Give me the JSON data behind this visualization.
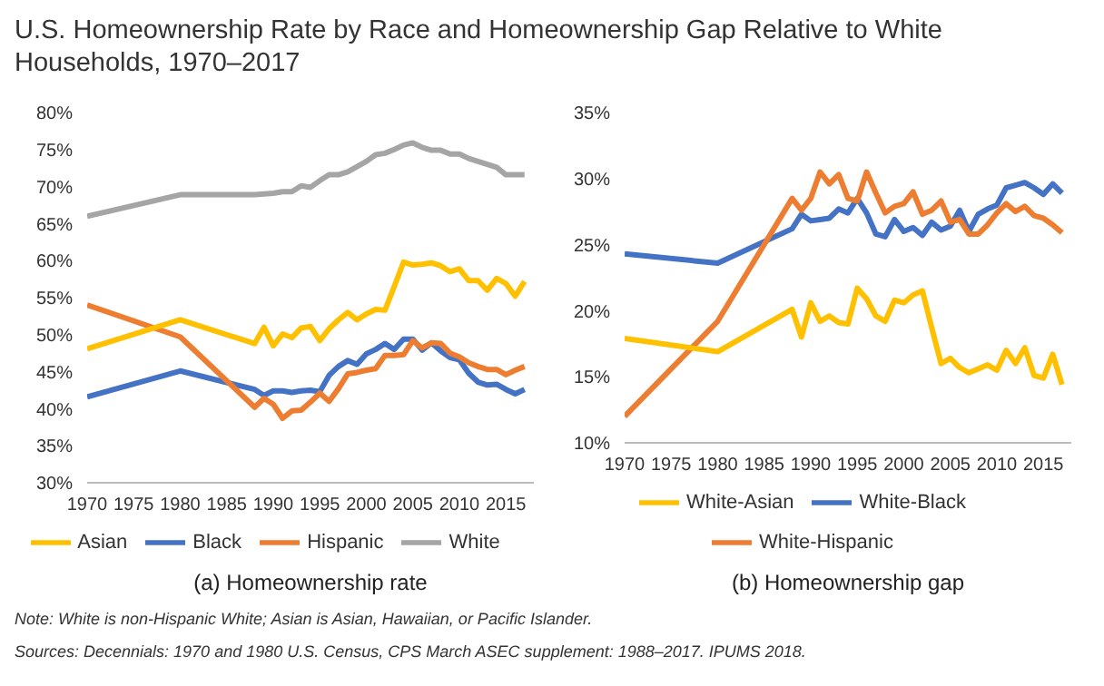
{
  "chart_data": [
    {
      "type": "line",
      "title": "U.S. Homeownership Rate by Race and Homeownership Gap Relative to White Households, 1970–2017",
      "xlabel": "(a) Homeownership rate",
      "x": [
        1970,
        1980,
        1988,
        1989,
        1990,
        1991,
        1992,
        1993,
        1994,
        1995,
        1996,
        1997,
        1998,
        1999,
        2000,
        2001,
        2002,
        2003,
        2004,
        2005,
        2006,
        2007,
        2008,
        2009,
        2010,
        2011,
        2012,
        2013,
        2014,
        2015,
        2016,
        2017
      ],
      "series": [
        {
          "name": "Black",
          "color": "#4472c4",
          "values": [
            41.6,
            45.1,
            42.6,
            41.8,
            42.4,
            42.4,
            42.2,
            42.4,
            42.5,
            42.3,
            44.5,
            45.7,
            46.5,
            46.0,
            47.4,
            48.0,
            48.8,
            48.0,
            49.4,
            49.4,
            47.9,
            48.9,
            47.8,
            46.9,
            46.6,
            44.8,
            43.6,
            43.2,
            43.3,
            42.6,
            42.0,
            42.6
          ]
        },
        {
          "name": "Hispanic",
          "color": "#ed7d31",
          "values": [
            54.0,
            49.7,
            40.2,
            41.4,
            40.6,
            38.7,
            39.7,
            39.8,
            40.9,
            42.1,
            41.0,
            42.7,
            44.7,
            44.9,
            45.2,
            45.4,
            47.2,
            47.2,
            47.3,
            49.2,
            48.2,
            48.9,
            48.8,
            47.5,
            47.0,
            46.2,
            45.7,
            45.3,
            45.3,
            44.6,
            45.2,
            45.7
          ]
        },
        {
          "name": "Asian",
          "color": "#ffc000",
          "values": [
            48.1,
            52.0,
            48.8,
            51.0,
            48.5,
            50.1,
            49.6,
            50.9,
            51.1,
            49.2,
            50.8,
            52.0,
            53.0,
            52.0,
            52.8,
            53.4,
            53.3,
            56.5,
            59.8,
            59.4,
            59.5,
            59.7,
            59.3,
            58.5,
            58.9,
            57.3,
            57.3,
            56.0,
            57.6,
            56.9,
            55.2,
            57.2
          ]
        },
        {
          "name": "White",
          "color": "#a5a5a5",
          "values": [
            66.0,
            68.9,
            68.9,
            69.0,
            69.1,
            69.3,
            69.3,
            70.1,
            69.9,
            70.8,
            71.6,
            71.6,
            72.0,
            72.7,
            73.4,
            74.3,
            74.5,
            75.0,
            75.6,
            75.9,
            75.3,
            74.9,
            74.9,
            74.4,
            74.4,
            73.8,
            73.4,
            73.0,
            72.6,
            71.6,
            71.6,
            71.6
          ]
        }
      ],
      "xlim": [
        1970,
        2018
      ],
      "xticks": [
        1970,
        1975,
        1980,
        1985,
        1990,
        1995,
        2000,
        2005,
        2010,
        2015
      ],
      "ylim": [
        30,
        80
      ],
      "yticks": [
        {
          "value": 30,
          "label": "30%"
        },
        {
          "value": 35,
          "label": "35%"
        },
        {
          "value": 40,
          "label": "40%"
        },
        {
          "value": 45,
          "label": "45%"
        },
        {
          "value": 50,
          "label": "50%"
        },
        {
          "value": 55,
          "label": "55%"
        },
        {
          "value": 60,
          "label": "60%"
        },
        {
          "value": 65,
          "label": "65%"
        },
        {
          "value": 70,
          "label": "70%"
        },
        {
          "value": 75,
          "label": "75%"
        },
        {
          "value": 80,
          "label": "80%"
        }
      ],
      "grid": false,
      "legend": "bottom",
      "marker": "none",
      "line_style": "solid"
    },
    {
      "type": "line",
      "xlabel": "(b) Homeownership gap",
      "x": [
        1970,
        1980,
        1988,
        1989,
        1990,
        1991,
        1992,
        1993,
        1994,
        1995,
        1996,
        1997,
        1998,
        1999,
        2000,
        2001,
        2002,
        2003,
        2004,
        2005,
        2006,
        2007,
        2008,
        2009,
        2010,
        2011,
        2012,
        2013,
        2014,
        2015,
        2016,
        2017
      ],
      "series": [
        {
          "name": "White-Black",
          "color": "#4472c4",
          "values": [
            24.3,
            23.6,
            26.2,
            27.3,
            26.8,
            26.9,
            27.0,
            27.7,
            27.4,
            28.5,
            27.4,
            25.8,
            25.6,
            26.9,
            26.0,
            26.3,
            25.7,
            26.7,
            26.1,
            26.4,
            27.6,
            26.0,
            27.3,
            27.7,
            28.0,
            29.3,
            29.5,
            29.7,
            29.3,
            28.8,
            29.6,
            28.9
          ]
        },
        {
          "name": "White-Hispanic",
          "color": "#ed7d31",
          "values": [
            12.0,
            19.2,
            28.5,
            27.6,
            28.5,
            30.5,
            29.6,
            30.3,
            28.5,
            28.3,
            30.5,
            28.9,
            27.4,
            27.9,
            28.1,
            29.0,
            27.3,
            27.6,
            28.3,
            26.7,
            26.9,
            25.8,
            25.8,
            26.5,
            27.4,
            28.1,
            27.5,
            27.9,
            27.2,
            27.0,
            26.5,
            25.9
          ]
        },
        {
          "name": "White-Asian",
          "color": "#ffc000",
          "values": [
            17.9,
            16.9,
            20.1,
            18.0,
            20.6,
            19.2,
            19.6,
            19.1,
            19.0,
            21.7,
            20.9,
            19.6,
            19.2,
            20.8,
            20.6,
            21.2,
            21.5,
            18.7,
            16.0,
            16.4,
            15.7,
            15.3,
            15.6,
            15.9,
            15.5,
            17.0,
            16.0,
            17.2,
            15.1,
            14.9,
            16.7,
            14.4
          ]
        }
      ],
      "xlim": [
        1970,
        2018
      ],
      "xticks": [
        1970,
        1975,
        1980,
        1985,
        1990,
        1995,
        2000,
        2005,
        2010,
        2015
      ],
      "ylim": [
        10,
        35
      ],
      "yticks": [
        {
          "value": 10,
          "label": "10%"
        },
        {
          "value": 15,
          "label": "15%"
        },
        {
          "value": 20,
          "label": "20%"
        },
        {
          "value": 25,
          "label": "25%"
        },
        {
          "value": 30,
          "label": "30%"
        },
        {
          "value": 35,
          "label": "35%"
        }
      ],
      "grid": false,
      "legend": "bottom",
      "marker": "none",
      "line_style": "solid",
      "annotations": [
        "Note: White is non-Hispanic White; Asian is Asian, Hawaiian, or Pacific Islander.",
        "Sources: Decennials: 1970 and 1980 U.S. Census, CPS March ASEC supplement: 1988–2017. IPUMS 2018."
      ]
    }
  ]
}
